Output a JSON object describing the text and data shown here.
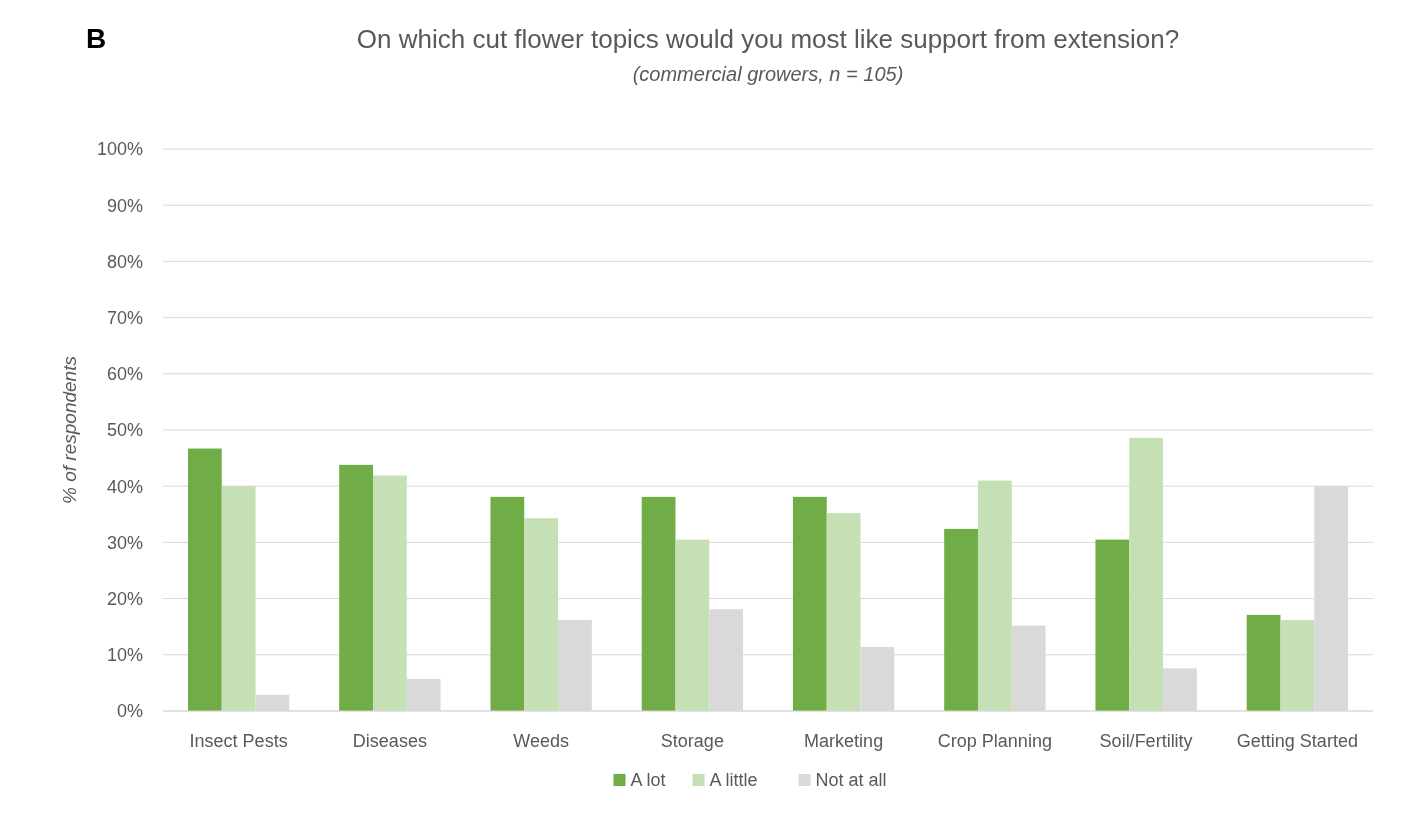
{
  "chart_data": {
    "type": "bar",
    "title": "On which cut flower topics would you most like support from extension?",
    "subtitle": "(commercial growers, n = 105)",
    "ylabel": "% of respondents",
    "annotations": [
      "B"
    ],
    "categories": [
      "Insect Pests",
      "Diseases",
      "Weeds",
      "Storage",
      "Marketing",
      "Crop Planning",
      "Soil/Fertility",
      "Getting Started"
    ],
    "series": [
      {
        "name": "A lot",
        "color": "#70ad47",
        "values": [
          46.7,
          43.8,
          38.1,
          38.1,
          38.1,
          32.4,
          30.5,
          17.1
        ]
      },
      {
        "name": "A little",
        "color": "#c5e0b4",
        "values": [
          40.0,
          41.9,
          34.3,
          30.5,
          35.2,
          41.0,
          48.6,
          16.2
        ]
      },
      {
        "name": "Not at all",
        "color": "#d9d9d9",
        "values": [
          2.9,
          5.7,
          16.2,
          18.1,
          11.4,
          15.2,
          7.6,
          40.0
        ]
      }
    ],
    "ylim": [
      0,
      100
    ],
    "yticks": [
      {
        "value": 0,
        "label": "0%"
      },
      {
        "value": 10,
        "label": "10%"
      },
      {
        "value": 20,
        "label": "20%"
      },
      {
        "value": 30,
        "label": "30%"
      },
      {
        "value": 40,
        "label": "40%"
      },
      {
        "value": 50,
        "label": "50%"
      },
      {
        "value": 60,
        "label": "60%"
      },
      {
        "value": 70,
        "label": "70%"
      },
      {
        "value": 80,
        "label": "80%"
      },
      {
        "value": 90,
        "label": "90%"
      },
      {
        "value": 100,
        "label": "100%"
      }
    ],
    "grid": "y",
    "legend": "bottom"
  }
}
